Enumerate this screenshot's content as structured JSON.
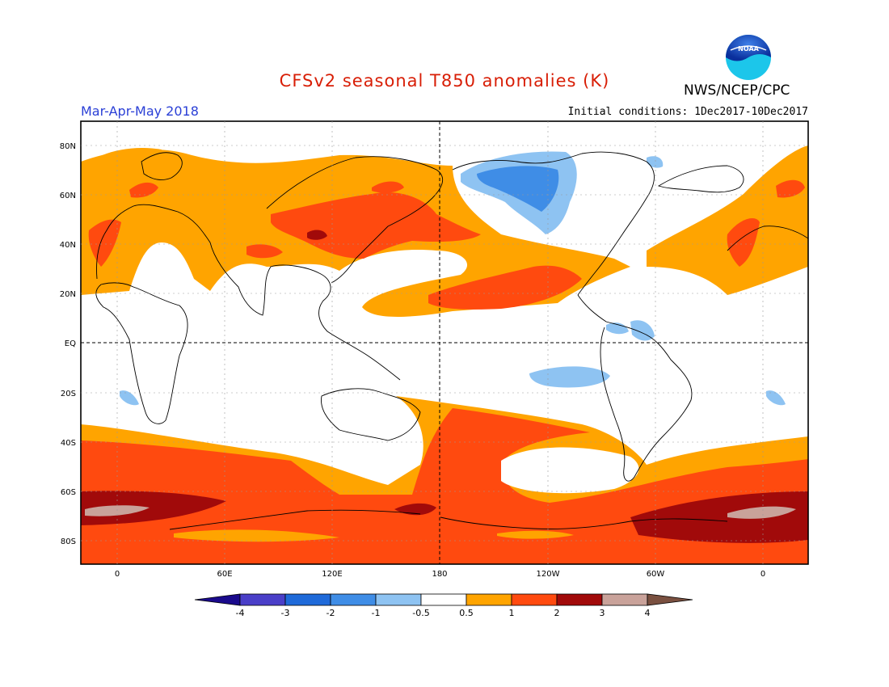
{
  "header": {
    "title": "CFSv2 seasonal T850 anomalies (K)",
    "org": "NWS/NCEP/CPC",
    "period": "Mar-Apr-May 2018",
    "initial_conditions": "Initial conditions: 1Dec2017-10Dec2017",
    "logo_text": "NOAA"
  },
  "axes": {
    "lat_labels": [
      "80N",
      "60N",
      "40N",
      "20N",
      "EQ",
      "20S",
      "40S",
      "60S",
      "80S"
    ],
    "lon_labels": [
      "0",
      "60E",
      "120E",
      "180",
      "120W",
      "60W",
      "0"
    ]
  },
  "colorbar": {
    "ticks": [
      "-4",
      "-3",
      "-2",
      "-1",
      "-0.5",
      "0.5",
      "1",
      "2",
      "3",
      "4"
    ],
    "colors": [
      "#1a0a8c",
      "#4a3fc8",
      "#1f6ad9",
      "#3f8de6",
      "#8ec3f2",
      "#ffffff",
      "#ffa400",
      "#ff4a0f",
      "#a10a0a",
      "#c9a29a",
      "#7a5040"
    ]
  },
  "colors": {
    "orange": "#ffa400",
    "red": "#ff4a0f",
    "darkred": "#a10a0a",
    "pink": "#c9a29a",
    "blue_light": "#8ec3f2",
    "blue_mid": "#3f8de6"
  }
}
